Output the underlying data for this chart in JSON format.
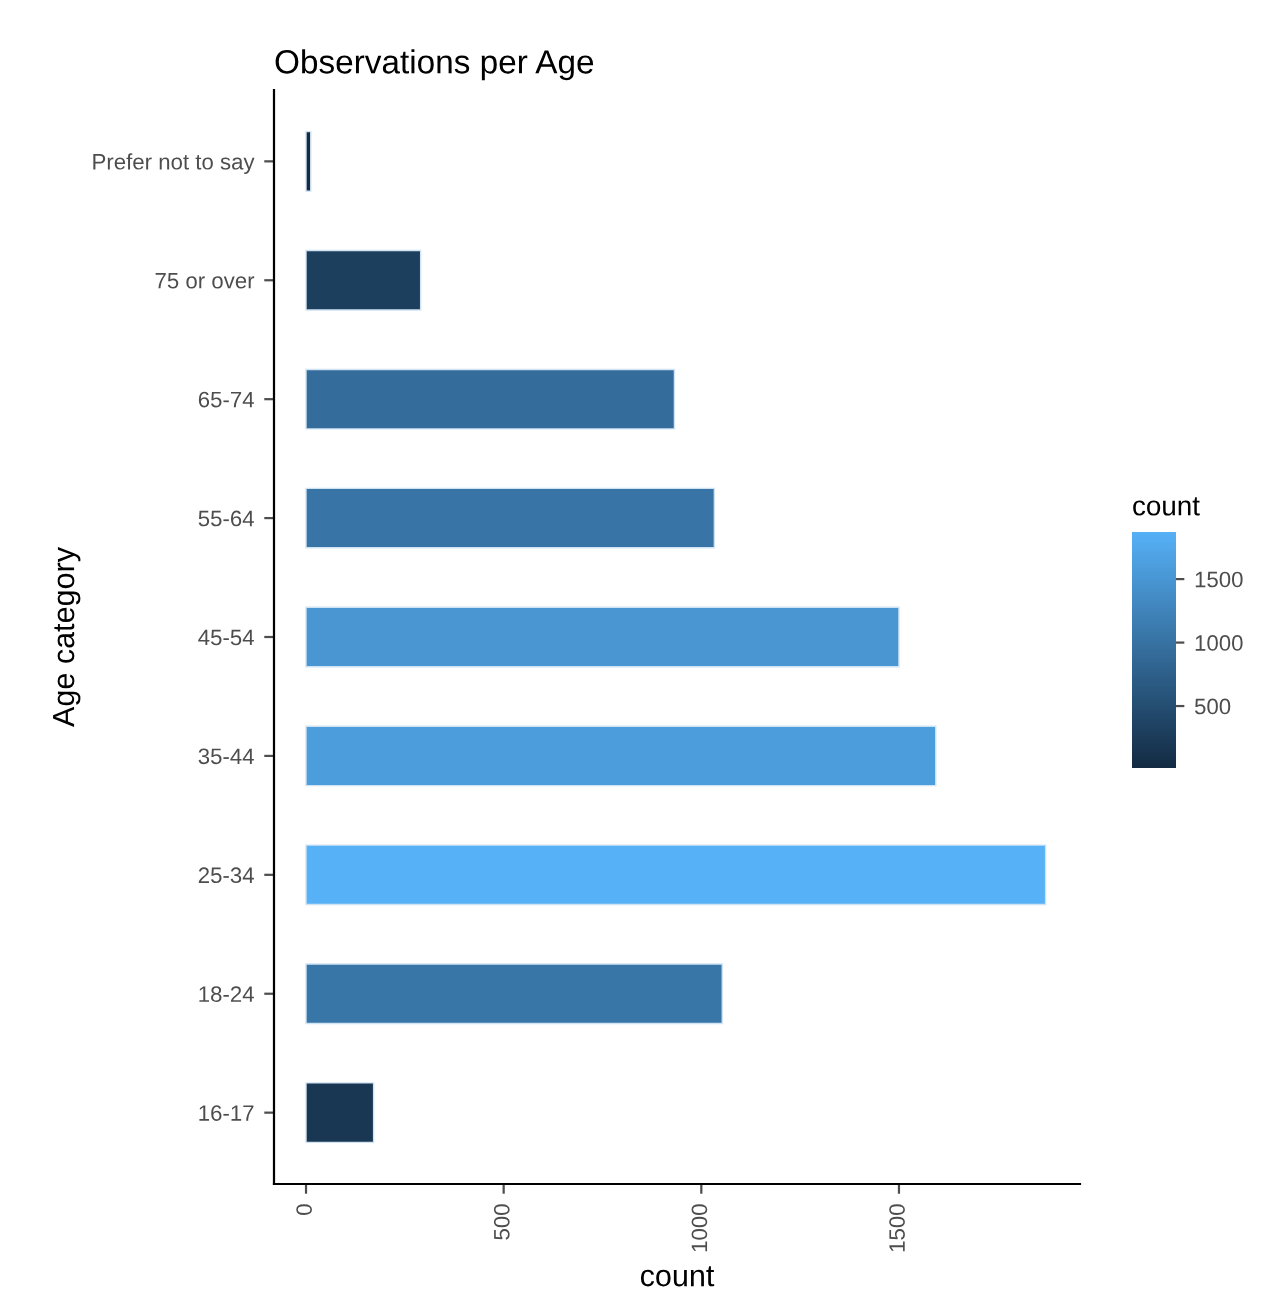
{
  "chart_data": {
    "type": "bar",
    "orientation": "horizontal",
    "title": "Observations per Age",
    "xlabel": "count",
    "ylabel": "Age category",
    "clabel": "count",
    "categories": [
      "Prefer not to say",
      "75 or over",
      "65-74",
      "55-64",
      "45-54",
      "35-44",
      "25-34",
      "18-24",
      "16-17"
    ],
    "values": [
      12,
      290,
      932,
      1033,
      1500,
      1593,
      1871,
      1053,
      171
    ],
    "colors": [
      "#132B43",
      "#1D3F5E",
      "#346D9C",
      "#3875A6",
      "#4996D3",
      "#4C9DDC",
      "#56B1F7",
      "#3976A8",
      "#193752"
    ],
    "xlim": [
      -81,
      1958
    ],
    "xticks": [
      0,
      500,
      1000,
      1500
    ],
    "clim": [
      12,
      1871
    ],
    "cticks": [
      500,
      1000,
      1500
    ],
    "grid": false,
    "legend": false
  }
}
